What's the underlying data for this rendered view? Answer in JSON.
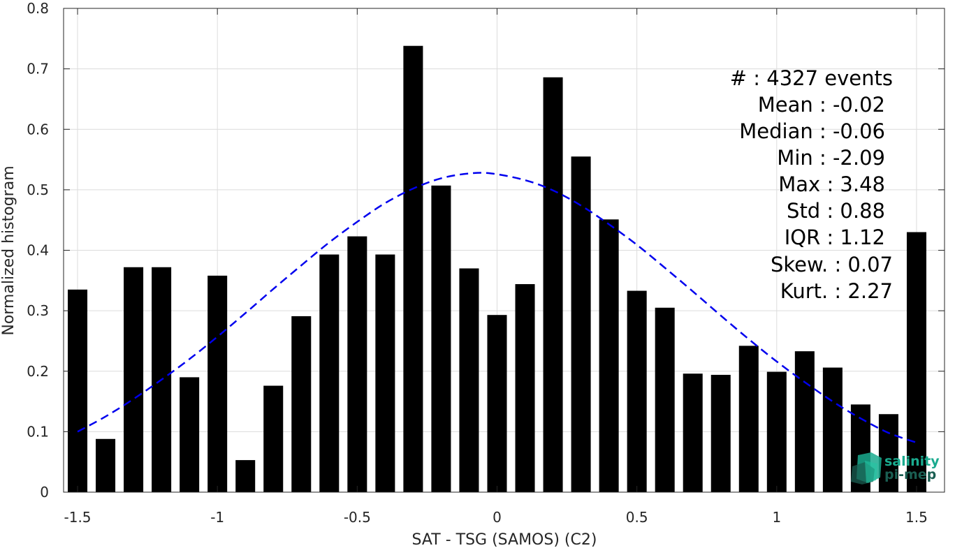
{
  "chart_data": {
    "type": "bar",
    "title": "",
    "xlabel": "SAT - TSG (SAMOS) (C2)",
    "ylabel": "Normalized histogram",
    "xlim": [
      -1.55,
      1.6
    ],
    "ylim": [
      0,
      0.8
    ],
    "grid": true,
    "x_ticks": [
      -1.5,
      -1,
      -0.5,
      0,
      0.5,
      1,
      1.5
    ],
    "x_tick_labels": [
      "-1.5",
      "-1",
      "-0.5",
      "0",
      "0.5",
      "1",
      "1.5"
    ],
    "y_ticks": [
      0,
      0.1,
      0.2,
      0.3,
      0.4,
      0.5,
      0.6,
      0.7,
      0.8
    ],
    "y_tick_labels": [
      "0",
      "0.1",
      "0.2",
      "0.3",
      "0.4",
      "0.5",
      "0.6",
      "0.7",
      "0.8"
    ],
    "bar_width": 0.07,
    "bars": {
      "x": [
        -1.5,
        -1.4,
        -1.3,
        -1.2,
        -1.1,
        -1.0,
        -0.9,
        -0.8,
        -0.7,
        -0.6,
        -0.5,
        -0.4,
        -0.3,
        -0.2,
        -0.1,
        0.0,
        0.1,
        0.2,
        0.3,
        0.4,
        0.5,
        0.6,
        0.7,
        0.8,
        0.9,
        1.0,
        1.1,
        1.2,
        1.3,
        1.4,
        1.5
      ],
      "values": [
        0.335,
        0.088,
        0.372,
        0.372,
        0.19,
        0.358,
        0.053,
        0.176,
        0.291,
        0.393,
        0.423,
        0.393,
        0.738,
        0.507,
        0.37,
        0.293,
        0.344,
        0.686,
        0.555,
        0.451,
        0.333,
        0.305,
        0.196,
        0.194,
        0.242,
        0.199,
        0.233,
        0.206,
        0.145,
        0.129,
        0.43
      ],
      "color": "#000000"
    },
    "fit": {
      "style": "dashed",
      "color": "#0000ee",
      "x": [
        -1.5,
        -1.4,
        -1.3,
        -1.2,
        -1.1,
        -1.0,
        -0.9,
        -0.8,
        -0.7,
        -0.6,
        -0.5,
        -0.4,
        -0.3,
        -0.2,
        -0.1,
        -0.02,
        0.1,
        0.2,
        0.3,
        0.4,
        0.5,
        0.6,
        0.7,
        0.8,
        0.9,
        1.0,
        1.1,
        1.2,
        1.3,
        1.4,
        1.5
      ],
      "y": [
        0.1,
        0.125,
        0.154,
        0.186,
        0.22,
        0.257,
        0.296,
        0.336,
        0.375,
        0.413,
        0.447,
        0.478,
        0.502,
        0.519,
        0.527,
        0.527,
        0.516,
        0.499,
        0.474,
        0.443,
        0.409,
        0.371,
        0.332,
        0.292,
        0.253,
        0.216,
        0.182,
        0.15,
        0.122,
        0.098,
        0.082
      ]
    },
    "stats": {
      "lines": [
        "#  : 4327 events",
        "Mean : -0.02",
        "Median : -0.06",
        "Min : -2.09",
        "Max : 3.48",
        "Std : 0.88",
        "IQR : 1.12",
        "Skew. : 0.07",
        "Kurt. : 2.27"
      ]
    },
    "logo": {
      "line1": "salinity",
      "line2": "pi-mep",
      "color1": "#1aab8f",
      "color2": "#1a5e52"
    }
  }
}
